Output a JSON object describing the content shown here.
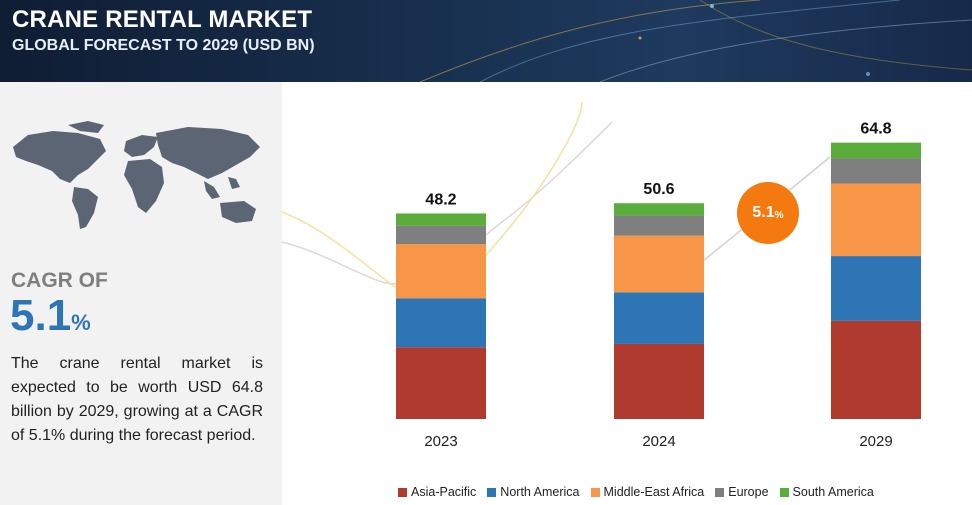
{
  "header": {
    "title": "CRANE RENTAL MARKET",
    "subtitle": "GLOBAL FORECAST TO 2029 (USD BN)"
  },
  "summary": {
    "cagr_label": "CAGR OF",
    "cagr_value": "5.1",
    "cagr_unit": "%",
    "description": "The crane rental market is expected to be worth USD 64.8 billion by 2029, growing at a CAGR of 5.1% during the forecast period."
  },
  "growth_badge": {
    "value": "5.1",
    "unit": "%"
  },
  "colors": {
    "Asia-Pacific": "#b03a2e",
    "North America": "#2e75b6",
    "Middle-East Africa": "#f79646",
    "Europe": "#7f7f7f",
    "South America": "#5aad3a",
    "badge": "#f4790f",
    "header_bg": "#18304f"
  },
  "chart_data": {
    "type": "bar",
    "stacked": true,
    "categories": [
      "2023",
      "2024",
      "2029"
    ],
    "totals": [
      48.2,
      50.6,
      64.8
    ],
    "series": [
      {
        "name": "Asia-Pacific",
        "values": [
          16.8,
          17.6,
          23.0
        ]
      },
      {
        "name": "North America",
        "values": [
          11.5,
          12.1,
          15.2
        ]
      },
      {
        "name": "Middle-East Africa",
        "values": [
          12.7,
          13.3,
          17.0
        ]
      },
      {
        "name": "Europe",
        "values": [
          4.3,
          4.7,
          5.9
        ]
      },
      {
        "name": "South America",
        "values": [
          2.9,
          2.9,
          3.7
        ]
      }
    ],
    "ylim": [
      0,
      68
    ],
    "legend_position": "bottom",
    "grid": false
  }
}
